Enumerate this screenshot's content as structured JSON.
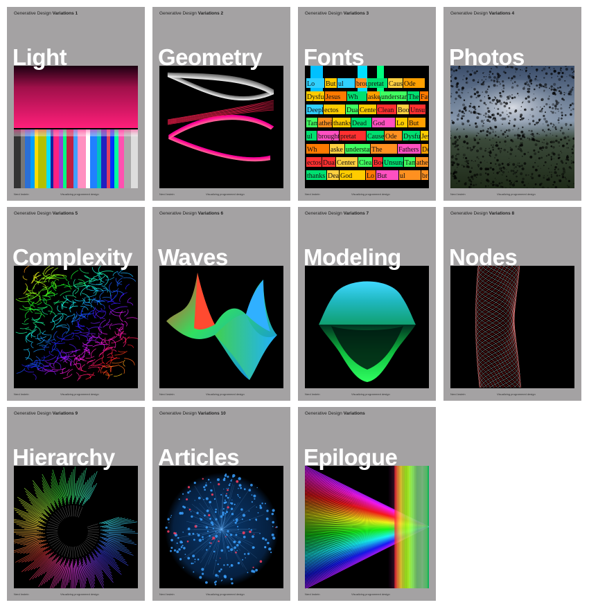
{
  "series_label": "Generative Design",
  "footer_left": "Nerd Instein",
  "footer_right": "Visualizing programmed design",
  "posters": [
    {
      "variation": "Variations 1",
      "title": "Light"
    },
    {
      "variation": "Variations 2",
      "title": "Geometry"
    },
    {
      "variation": "Variations 3",
      "title": "Fonts"
    },
    {
      "variation": "Variations 4",
      "title": "Photos"
    },
    {
      "variation": "Variations 5",
      "title": "Complexity"
    },
    {
      "variation": "Variations 6",
      "title": "Waves"
    },
    {
      "variation": "Variations 7",
      "title": "Modeling"
    },
    {
      "variation": "Variations 8",
      "title": "Nodes"
    },
    {
      "variation": "Variations 9",
      "title": "Hierarchy"
    },
    {
      "variation": "Variations 10",
      "title": "Articles"
    },
    {
      "variation": "Variations",
      "title": "Epilogue"
    }
  ],
  "fonts_art_words": [
    "Lo",
    "But",
    "ul",
    "brought",
    "pretat",
    "Cause",
    "Ode",
    "Dysfu",
    "Jesus",
    "Wh",
    "aske",
    "understand",
    "The",
    "Fathers",
    "Deeply",
    "ectos",
    "Duals",
    "Center",
    "Clean",
    "Bootlegs",
    "Unsung",
    "Tam",
    "atheist",
    "thanks",
    "Dead",
    "God"
  ]
}
